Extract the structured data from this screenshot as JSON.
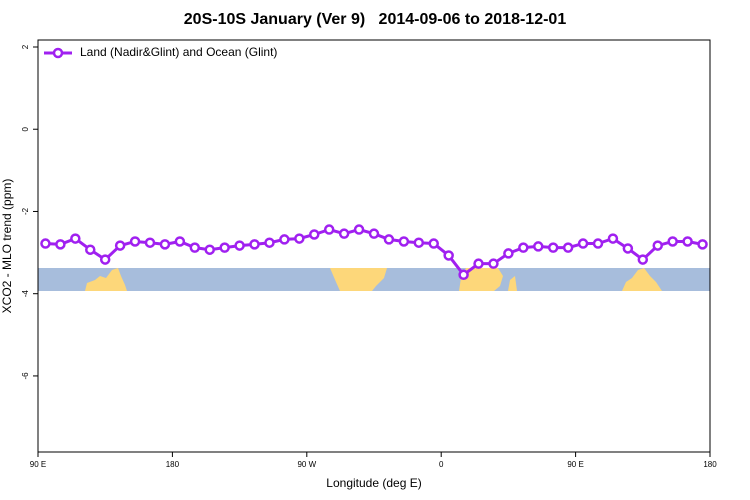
{
  "chart_data": {
    "type": "line",
    "title": "20S-10S January (Ver 9)   2014-09-06 to 2018-12-01",
    "xlabel": "Longitude (deg E)",
    "ylabel": "XCO2 - MLO trend (ppm)",
    "x": [
      95,
      105,
      115,
      125,
      135,
      145,
      155,
      165,
      175,
      185,
      195,
      205,
      215,
      225,
      235,
      245,
      255,
      265,
      275,
      285,
      295,
      305,
      315,
      325,
      335,
      345,
      355,
      365,
      375,
      385,
      395,
      405,
      415,
      425,
      435,
      445,
      455,
      465,
      475,
      485,
      495,
      505,
      515,
      525,
      535
    ],
    "series": [
      {
        "name": "Land (Nadir&Glint) and Ocean (Glint)",
        "color": "#a020f0",
        "values": [
          -2.78,
          -2.8,
          -2.66,
          -2.93,
          -3.17,
          -2.83,
          -2.73,
          -2.76,
          -2.8,
          -2.73,
          -2.88,
          -2.93,
          -2.88,
          -2.83,
          -2.8,
          -2.76,
          -2.68,
          -2.66,
          -2.56,
          -2.44,
          -2.54,
          -2.44,
          -2.54,
          -2.68,
          -2.73,
          -2.76,
          -2.78,
          -3.07,
          -3.54,
          -3.27,
          -3.27,
          -3.02,
          -2.88,
          -2.85,
          -2.88,
          -2.88,
          -2.78,
          -2.78,
          -2.66,
          -2.9,
          -3.17,
          -2.83,
          -2.73,
          -2.73,
          -2.8
        ]
      }
    ],
    "xlim": [
      90,
      540
    ],
    "xticks": [
      {
        "value": 90,
        "label": "90 E"
      },
      {
        "value": 180,
        "label": "180"
      },
      {
        "value": 270,
        "label": "90 W"
      },
      {
        "value": 360,
        "label": "0"
      },
      {
        "value": 450,
        "label": "90 E"
      },
      {
        "value": 540,
        "label": "180"
      }
    ],
    "ylim": [
      -7.85,
      2.17
    ],
    "yticks": [
      2,
      0,
      -2,
      -4,
      -6
    ],
    "legend": "top-left"
  }
}
